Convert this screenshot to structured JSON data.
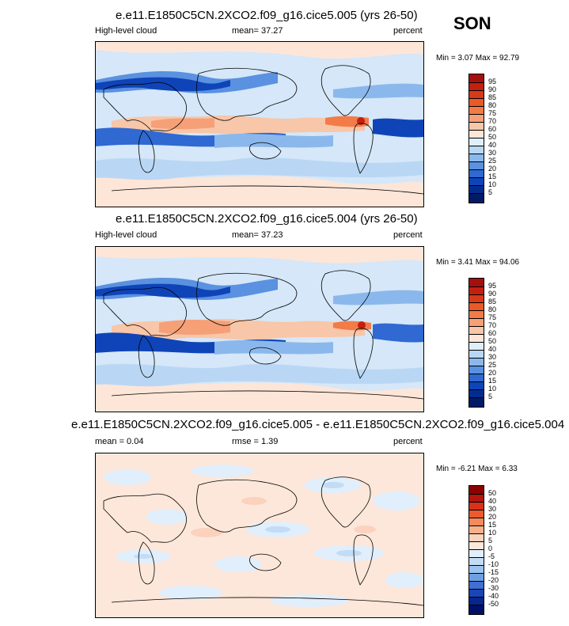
{
  "season": "SON",
  "panels": [
    {
      "title": "e.e11.E1850C5CN.2XCO2.f09_g16.cice5.005 (yrs 26-50)",
      "left_label": "High-level cloud",
      "center_label": "mean=  37.27",
      "right_label": "percent",
      "minmax": "Min =   3.07 Max =  92.79",
      "colorbar_labels": [
        "95",
        "90",
        "85",
        "80",
        "75",
        "70",
        "60",
        "50",
        "40",
        "30",
        "25",
        "20",
        "15",
        "10",
        "5"
      ],
      "colorbar_colors": [
        "#a50f0f",
        "#c4200f",
        "#d83a17",
        "#ea5a26",
        "#f27b48",
        "#f6a078",
        "#f8c6a8",
        "#fde6d8",
        "#dfeefb",
        "#b9d7f4",
        "#8bb8ec",
        "#5a91e0",
        "#2f69d1",
        "#0f44b8",
        "#032c8f",
        "#001a66"
      ]
    },
    {
      "title": "e.e11.E1850C5CN.2XCO2.f09_g16.cice5.004 (yrs 26-50)",
      "left_label": "High-level cloud",
      "center_label": "mean=  37.23",
      "right_label": "percent",
      "minmax": "Min =   3.41 Max =  94.06",
      "colorbar_labels": [
        "95",
        "90",
        "85",
        "80",
        "75",
        "70",
        "60",
        "50",
        "40",
        "30",
        "25",
        "20",
        "15",
        "10",
        "5"
      ],
      "colorbar_colors": [
        "#a50f0f",
        "#c4200f",
        "#d83a17",
        "#ea5a26",
        "#f27b48",
        "#f6a078",
        "#f8c6a8",
        "#fde6d8",
        "#dfeefb",
        "#b9d7f4",
        "#8bb8ec",
        "#5a91e0",
        "#2f69d1",
        "#0f44b8",
        "#032c8f",
        "#001a66"
      ]
    },
    {
      "title": "e.e11.E1850C5CN.2XCO2.f09_g16.cice5.005 - e.e11.E1850C5CN.2XCO2.f09_g16.cice5.004",
      "left_label": "mean =   0.04",
      "center_label": "rmse =   1.39",
      "right_label": "percent",
      "minmax": "Min =  -6.21 Max =   6.33",
      "colorbar_labels": [
        "50",
        "40",
        "30",
        "20",
        "15",
        "10",
        "5",
        "0",
        "-5",
        "-10",
        "-15",
        "-20",
        "-30",
        "-40",
        "-50"
      ],
      "colorbar_colors": [
        "#8b0000",
        "#b5140f",
        "#d8321a",
        "#ec5a2e",
        "#f48a5c",
        "#f7b08c",
        "#fbd2bd",
        "#fde7da",
        "#e1eefb",
        "#c2dcf5",
        "#9bc3ee",
        "#6f9fe3",
        "#416fd2",
        "#1a45b8",
        "#07278f",
        "#001066"
      ]
    }
  ]
}
